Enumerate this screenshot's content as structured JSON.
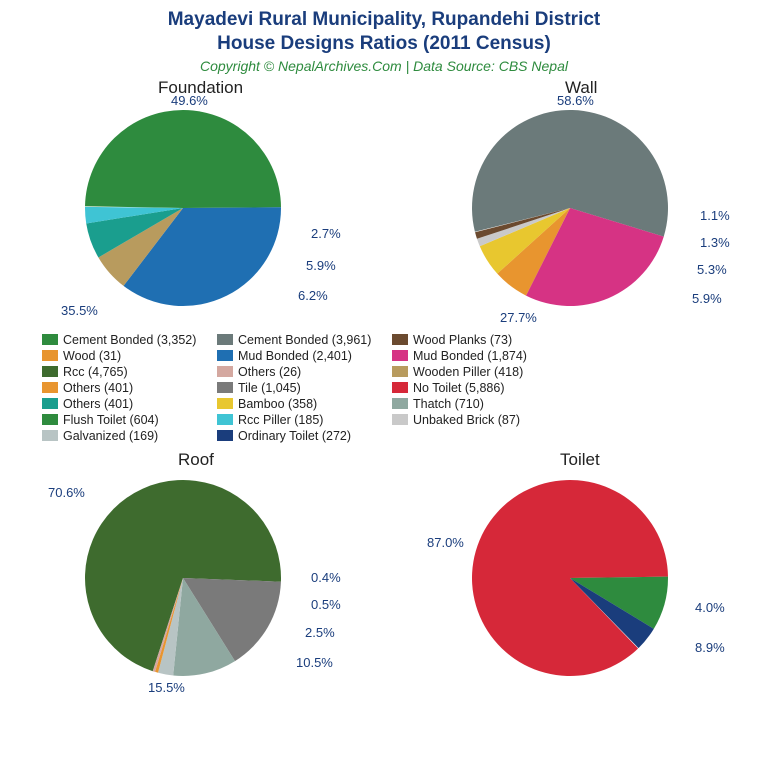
{
  "title_line1": "Mayadevi Rural Municipality, Rupandehi District",
  "title_line2": "House Designs Ratios (2011 Census)",
  "subtitle": "Copyright © NepalArchives.Com | Data Source: CBS Nepal",
  "charts": {
    "foundation": {
      "title": "Foundation",
      "slices": [
        {
          "pct": 49.6,
          "color": "#2e8b3e",
          "label": "49.6%"
        },
        {
          "pct": 35.5,
          "color": "#1f6fb2",
          "label": "35.5%"
        },
        {
          "pct": 6.2,
          "color": "#b89b5e",
          "label": "6.2%"
        },
        {
          "pct": 5.9,
          "color": "#1a9e8e",
          "label": "5.9%"
        },
        {
          "pct": 2.7,
          "color": "#3fc4d4",
          "label": "2.7%"
        }
      ]
    },
    "wall": {
      "title": "Wall",
      "slices": [
        {
          "pct": 58.6,
          "color": "#6b7a7a",
          "label": "58.6%"
        },
        {
          "pct": 27.7,
          "color": "#d63384",
          "label": "27.7%"
        },
        {
          "pct": 5.9,
          "color": "#e8952f",
          "label": "5.9%"
        },
        {
          "pct": 5.3,
          "color": "#e8c72f",
          "label": "5.3%"
        },
        {
          "pct": 1.3,
          "color": "#c9c9c9",
          "label": "1.3%"
        },
        {
          "pct": 1.1,
          "color": "#6b4a2f",
          "label": "1.1%"
        }
      ]
    },
    "roof": {
      "title": "Roof",
      "slices": [
        {
          "pct": 70.6,
          "color": "#3e6b2e",
          "label": "70.6%"
        },
        {
          "pct": 15.5,
          "color": "#7a7a7a",
          "label": "15.5%"
        },
        {
          "pct": 10.5,
          "color": "#8fa8a0",
          "label": "10.5%"
        },
        {
          "pct": 2.5,
          "color": "#b8c4c4",
          "label": "2.5%"
        },
        {
          "pct": 0.5,
          "color": "#e8952f",
          "label": "0.5%"
        },
        {
          "pct": 0.4,
          "color": "#d4a8a0",
          "label": "0.4%"
        }
      ]
    },
    "toilet": {
      "title": "Toilet",
      "slices": [
        {
          "pct": 87.0,
          "color": "#d62839",
          "label": "87.0%"
        },
        {
          "pct": 8.9,
          "color": "#2e8b3e",
          "label": "8.9%"
        },
        {
          "pct": 4.0,
          "color": "#1a3d7c",
          "label": "4.0%"
        }
      ]
    }
  },
  "legend": [
    {
      "color": "#2e8b3e",
      "text": "Cement Bonded (3,352)"
    },
    {
      "color": "#1f6fb2",
      "text": "Mud Bonded (2,401)"
    },
    {
      "color": "#b89b5e",
      "text": "Wooden Piller (418)"
    },
    {
      "color": "#1a9e8e",
      "text": "Others (401)"
    },
    {
      "color": "#3fc4d4",
      "text": "Rcc Piller (185)"
    },
    {
      "color": "#6b7a7a",
      "text": "Cement Bonded (3,961)"
    },
    {
      "color": "#d63384",
      "text": "Mud Bonded (1,874)"
    },
    {
      "color": "#e8952f",
      "text": "Others (401)"
    },
    {
      "color": "#e8c72f",
      "text": "Bamboo (358)"
    },
    {
      "color": "#c9c9c9",
      "text": "Unbaked Brick (87)"
    },
    {
      "color": "#6b4a2f",
      "text": "Wood Planks (73)"
    },
    {
      "color": "#3e6b2e",
      "text": "Rcc (4,765)"
    },
    {
      "color": "#7a7a7a",
      "text": "Tile (1,045)"
    },
    {
      "color": "#8fa8a0",
      "text": "Thatch (710)"
    },
    {
      "color": "#b8c4c4",
      "text": "Galvanized (169)"
    },
    {
      "color": "#e8952f",
      "text": "Wood (31)"
    },
    {
      "color": "#d4a8a0",
      "text": "Others (26)"
    },
    {
      "color": "#d62839",
      "text": "No Toilet (5,886)"
    },
    {
      "color": "#2e8b3e",
      "text": "Flush Toilet (604)"
    },
    {
      "color": "#1a3d7c",
      "text": "Ordinary Toilet (272)"
    }
  ]
}
